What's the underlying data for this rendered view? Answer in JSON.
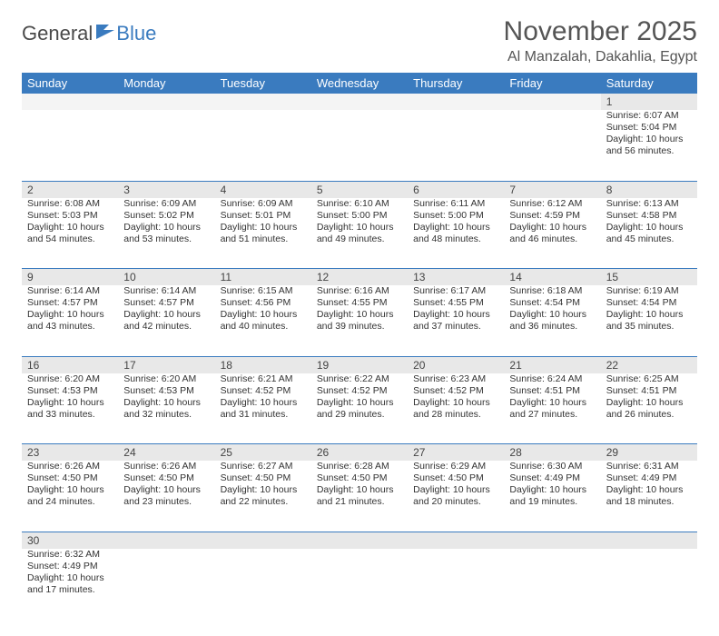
{
  "logo": {
    "part1": "General",
    "part2": "Blue"
  },
  "title": "November 2025",
  "location": "Al Manzalah, Dakahlia, Egypt",
  "colors": {
    "header_bg": "#3a7bbf",
    "header_text": "#ffffff",
    "daynum_bg": "#e8e8e8",
    "row_divider": "#3a7bbf",
    "body_text": "#333333",
    "title_text": "#555555"
  },
  "weekdays": [
    "Sunday",
    "Monday",
    "Tuesday",
    "Wednesday",
    "Thursday",
    "Friday",
    "Saturday"
  ],
  "weeks": [
    [
      null,
      null,
      null,
      null,
      null,
      null,
      {
        "n": "1",
        "sr": "6:07 AM",
        "ss": "5:04 PM",
        "dl": "10 hours and 56 minutes."
      }
    ],
    [
      {
        "n": "2",
        "sr": "6:08 AM",
        "ss": "5:03 PM",
        "dl": "10 hours and 54 minutes."
      },
      {
        "n": "3",
        "sr": "6:09 AM",
        "ss": "5:02 PM",
        "dl": "10 hours and 53 minutes."
      },
      {
        "n": "4",
        "sr": "6:09 AM",
        "ss": "5:01 PM",
        "dl": "10 hours and 51 minutes."
      },
      {
        "n": "5",
        "sr": "6:10 AM",
        "ss": "5:00 PM",
        "dl": "10 hours and 49 minutes."
      },
      {
        "n": "6",
        "sr": "6:11 AM",
        "ss": "5:00 PM",
        "dl": "10 hours and 48 minutes."
      },
      {
        "n": "7",
        "sr": "6:12 AM",
        "ss": "4:59 PM",
        "dl": "10 hours and 46 minutes."
      },
      {
        "n": "8",
        "sr": "6:13 AM",
        "ss": "4:58 PM",
        "dl": "10 hours and 45 minutes."
      }
    ],
    [
      {
        "n": "9",
        "sr": "6:14 AM",
        "ss": "4:57 PM",
        "dl": "10 hours and 43 minutes."
      },
      {
        "n": "10",
        "sr": "6:14 AM",
        "ss": "4:57 PM",
        "dl": "10 hours and 42 minutes."
      },
      {
        "n": "11",
        "sr": "6:15 AM",
        "ss": "4:56 PM",
        "dl": "10 hours and 40 minutes."
      },
      {
        "n": "12",
        "sr": "6:16 AM",
        "ss": "4:55 PM",
        "dl": "10 hours and 39 minutes."
      },
      {
        "n": "13",
        "sr": "6:17 AM",
        "ss": "4:55 PM",
        "dl": "10 hours and 37 minutes."
      },
      {
        "n": "14",
        "sr": "6:18 AM",
        "ss": "4:54 PM",
        "dl": "10 hours and 36 minutes."
      },
      {
        "n": "15",
        "sr": "6:19 AM",
        "ss": "4:54 PM",
        "dl": "10 hours and 35 minutes."
      }
    ],
    [
      {
        "n": "16",
        "sr": "6:20 AM",
        "ss": "4:53 PM",
        "dl": "10 hours and 33 minutes."
      },
      {
        "n": "17",
        "sr": "6:20 AM",
        "ss": "4:53 PM",
        "dl": "10 hours and 32 minutes."
      },
      {
        "n": "18",
        "sr": "6:21 AM",
        "ss": "4:52 PM",
        "dl": "10 hours and 31 minutes."
      },
      {
        "n": "19",
        "sr": "6:22 AM",
        "ss": "4:52 PM",
        "dl": "10 hours and 29 minutes."
      },
      {
        "n": "20",
        "sr": "6:23 AM",
        "ss": "4:52 PM",
        "dl": "10 hours and 28 minutes."
      },
      {
        "n": "21",
        "sr": "6:24 AM",
        "ss": "4:51 PM",
        "dl": "10 hours and 27 minutes."
      },
      {
        "n": "22",
        "sr": "6:25 AM",
        "ss": "4:51 PM",
        "dl": "10 hours and 26 minutes."
      }
    ],
    [
      {
        "n": "23",
        "sr": "6:26 AM",
        "ss": "4:50 PM",
        "dl": "10 hours and 24 minutes."
      },
      {
        "n": "24",
        "sr": "6:26 AM",
        "ss": "4:50 PM",
        "dl": "10 hours and 23 minutes."
      },
      {
        "n": "25",
        "sr": "6:27 AM",
        "ss": "4:50 PM",
        "dl": "10 hours and 22 minutes."
      },
      {
        "n": "26",
        "sr": "6:28 AM",
        "ss": "4:50 PM",
        "dl": "10 hours and 21 minutes."
      },
      {
        "n": "27",
        "sr": "6:29 AM",
        "ss": "4:50 PM",
        "dl": "10 hours and 20 minutes."
      },
      {
        "n": "28",
        "sr": "6:30 AM",
        "ss": "4:49 PM",
        "dl": "10 hours and 19 minutes."
      },
      {
        "n": "29",
        "sr": "6:31 AM",
        "ss": "4:49 PM",
        "dl": "10 hours and 18 minutes."
      }
    ],
    [
      {
        "n": "30",
        "sr": "6:32 AM",
        "ss": "4:49 PM",
        "dl": "10 hours and 17 minutes."
      },
      null,
      null,
      null,
      null,
      null,
      null
    ]
  ],
  "labels": {
    "sunrise": "Sunrise:",
    "sunset": "Sunset:",
    "daylight": "Daylight:"
  }
}
